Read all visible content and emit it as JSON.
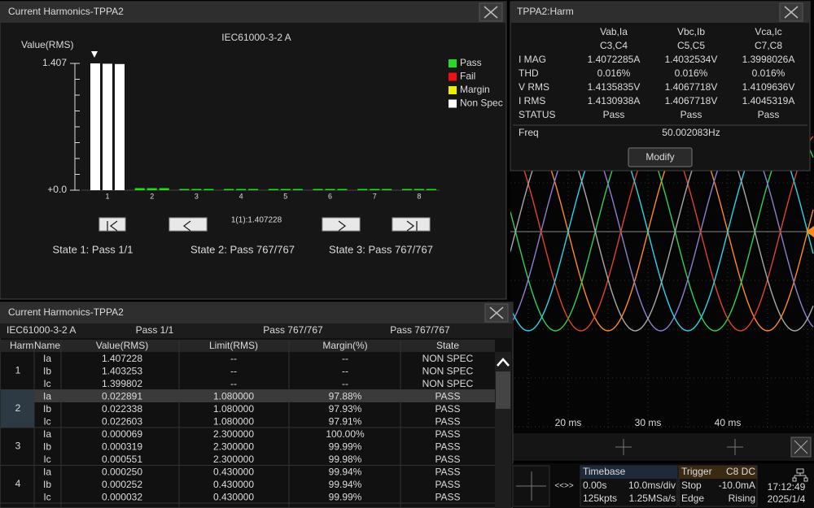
{
  "harmonics_panel": {
    "title": "Current Harmonics-TPPA2",
    "standard": "IEC61000-3-2 A",
    "y_label": "Value(RMS)",
    "ylim": [
      0,
      1.407
    ],
    "yticks": [
      {
        "value": 1.407,
        "label": "1.407"
      },
      {
        "value": 0,
        "label": "+0.0"
      }
    ],
    "legend": [
      {
        "name": "Pass",
        "color": "#22dd22"
      },
      {
        "name": "Fail",
        "color": "#ee1111"
      },
      {
        "name": "Margin",
        "color": "#eeee00"
      },
      {
        "name": "Non Spec",
        "color": "#ffffff"
      }
    ],
    "groups": [
      {
        "label": "1",
        "color": "#ffffff",
        "values": [
          1.407228,
          1.403253,
          1.399802
        ]
      },
      {
        "label": "2",
        "color": "#22dd22",
        "values": [
          0.022891,
          0.022338,
          0.022603
        ]
      },
      {
        "label": "3",
        "color": "#22dd22",
        "values": [
          6.9e-05,
          0.000319,
          0.000551
        ]
      },
      {
        "label": "4",
        "color": "#22dd22",
        "values": [
          0.00025,
          0.000252,
          3.2e-05
        ]
      },
      {
        "label": "5",
        "color": "#22dd22",
        "values": [
          0.0002,
          0.0002,
          0.0002
        ]
      },
      {
        "label": "6",
        "color": "#22dd22",
        "values": [
          0.0001,
          0.0001,
          0.0001
        ]
      },
      {
        "label": "7",
        "color": "#22dd22",
        "values": [
          0.0001,
          0.0001,
          0.0001
        ]
      },
      {
        "label": "8",
        "color": "#22dd22",
        "values": [
          0.0001,
          0.0001,
          0.0001
        ]
      }
    ],
    "cursor_readout": "1(1):1.407228",
    "states": [
      "State 1: Pass 1/1",
      "State 2: Pass 767/767",
      "State 3: Pass 767/767"
    ]
  },
  "measure_panel": {
    "title": "TPPA2:Harm",
    "columns": [
      [
        "Vab,Ia",
        "C3,C4"
      ],
      [
        "Vbc,Ib",
        "C5,C5"
      ],
      [
        "Vca,Ic",
        "C7,C8"
      ]
    ],
    "rows": [
      {
        "label": "I MAG",
        "cells": [
          "1.4072285A",
          "1.4032534V",
          "1.3998026A"
        ]
      },
      {
        "label": "THD",
        "cells": [
          "0.016%",
          "0.016%",
          "0.016%"
        ]
      },
      {
        "label": "V RMS",
        "cells": [
          "1.4135835V",
          "1.4067718V",
          "1.4109636V"
        ]
      },
      {
        "label": "I RMS",
        "cells": [
          "1.4130938A",
          "1.4067718V",
          "1.4045319A"
        ]
      },
      {
        "label": "STATUS",
        "cells": [
          "Pass",
          "Pass",
          "Pass"
        ]
      }
    ],
    "freq_label": "Freq",
    "freq": "50.002083Hz",
    "button": "Modify"
  },
  "waveform": {
    "time_labels": [
      "20 ms",
      "30 ms",
      "40 ms"
    ]
  },
  "table_panel": {
    "title": "Current Harmonics-TPPA2",
    "summary": [
      "IEC61000-3-2 A",
      "Pass 1/1",
      "Pass 767/767",
      "Pass 767/767"
    ],
    "header": [
      "Harm",
      "Name",
      "Value(RMS)",
      "Limit(RMS)",
      "Margin(%)",
      "State"
    ],
    "groups": [
      {
        "harm": "1",
        "rows": [
          [
            "Ia",
            "1.407228",
            "--",
            "--",
            "NON SPEC"
          ],
          [
            "Ib",
            "1.403253",
            "--",
            "--",
            "NON SPEC"
          ],
          [
            "Ic",
            "1.399802",
            "--",
            "--",
            "NON SPEC"
          ]
        ]
      },
      {
        "harm": "2",
        "rows": [
          [
            "Ia",
            "0.022891",
            "1.080000",
            "97.88%",
            "PASS"
          ],
          [
            "Ib",
            "0.022338",
            "1.080000",
            "97.93%",
            "PASS"
          ],
          [
            "Ic",
            "0.022603",
            "1.080000",
            "97.91%",
            "PASS"
          ]
        ]
      },
      {
        "harm": "3",
        "rows": [
          [
            "Ia",
            "0.000069",
            "2.300000",
            "100.00%",
            "PASS"
          ],
          [
            "Ib",
            "0.000319",
            "2.300000",
            "99.99%",
            "PASS"
          ],
          [
            "Ic",
            "0.000551",
            "2.300000",
            "99.98%",
            "PASS"
          ]
        ]
      },
      {
        "harm": "4",
        "rows": [
          [
            "Ia",
            "0.000250",
            "0.430000",
            "99.94%",
            "PASS"
          ],
          [
            "Ib",
            "0.000252",
            "0.430000",
            "99.94%",
            "PASS"
          ],
          [
            "Ic",
            "0.000032",
            "0.430000",
            "99.99%",
            "PASS"
          ]
        ]
      }
    ]
  },
  "status_bar": {
    "nav": "<<>>",
    "timebase": {
      "title": "Timebase",
      "position": "0.00s",
      "scale": "10.0ms/div",
      "points": "125kpts",
      "rate": "1.25MSa/s"
    },
    "trigger": {
      "title": "Trigger",
      "source": "C8 DC",
      "mode": "Stop",
      "level": "-10.0mA",
      "type": "Edge",
      "slope": "Rising"
    },
    "time": "17:12:49",
    "date": "2025/1/4"
  }
}
